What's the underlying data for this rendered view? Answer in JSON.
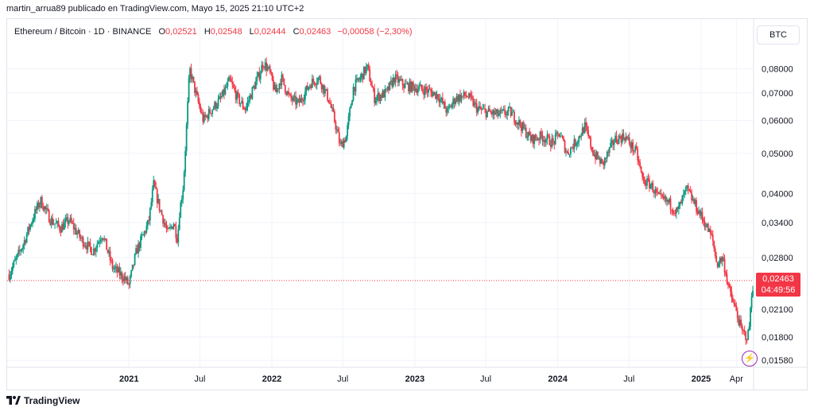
{
  "attribution": "martin_arrua89 publicado en TradingView.com, Mayo 15, 2025 21:10 UTC+2",
  "legend": {
    "symbol": "Ethereum / Bitcoin · 1D · BINANCE",
    "o_label": "O",
    "o_value": "0,02521",
    "h_label": "H",
    "h_value": "0,02548",
    "l_label": "L",
    "l_value": "0,02444",
    "c_label": "C",
    "c_value": "0,02463",
    "change": "−0,00058 (−2,30%)"
  },
  "unit": "BTC",
  "price_tag": {
    "price": "0,02463",
    "countdown": "04:49:56"
  },
  "footer_logo": "TradingView",
  "colors": {
    "up": "#089981",
    "down": "#f23645",
    "grid": "#f0f3fa",
    "text": "#131722",
    "flash": "#9c27b0"
  },
  "chart_data": {
    "type": "candlestick",
    "title": "Ethereum / Bitcoin · 1D · BINANCE",
    "y_scale": "log",
    "ylim": [
      0.0152,
      0.092
    ],
    "y_ticks": [
      {
        "value": 0.08,
        "label": "0,08000"
      },
      {
        "value": 0.07,
        "label": "0,07000"
      },
      {
        "value": 0.06,
        "label": "0,06000"
      },
      {
        "value": 0.05,
        "label": "0,05000"
      },
      {
        "value": 0.04,
        "label": "0,04000"
      },
      {
        "value": 0.034,
        "label": "0,03400"
      },
      {
        "value": 0.028,
        "label": "0,02800"
      },
      {
        "value": 0.021,
        "label": "0,02100"
      },
      {
        "value": 0.018,
        "label": "0,01800"
      },
      {
        "value": 0.0158,
        "label": "0,01580"
      }
    ],
    "x_ticks": [
      {
        "date": "2021-01-01",
        "label": "2021",
        "bold": true
      },
      {
        "date": "2021-07-01",
        "label": "Jul",
        "bold": false
      },
      {
        "date": "2022-01-01",
        "label": "2022",
        "bold": true
      },
      {
        "date": "2022-07-01",
        "label": "Jul",
        "bold": false
      },
      {
        "date": "2023-01-01",
        "label": "2023",
        "bold": true
      },
      {
        "date": "2023-07-01",
        "label": "Jul",
        "bold": false
      },
      {
        "date": "2024-01-01",
        "label": "2024",
        "bold": true
      },
      {
        "date": "2024-07-01",
        "label": "Jul",
        "bold": false
      },
      {
        "date": "2025-01-01",
        "label": "2025",
        "bold": true
      },
      {
        "date": "2025-04-01",
        "label": "Apr",
        "bold": false
      }
    ],
    "xlim": [
      "2020-02-25",
      "2025-05-15"
    ],
    "last_close": 0.02463,
    "close_path": [
      [
        "2020-03-01",
        0.0255
      ],
      [
        "2020-04-05",
        0.03
      ],
      [
        "2020-05-01",
        0.035
      ],
      [
        "2020-05-20",
        0.0385
      ],
      [
        "2020-06-15",
        0.0345
      ],
      [
        "2020-07-10",
        0.033
      ],
      [
        "2020-08-01",
        0.0345
      ],
      [
        "2020-09-01",
        0.031
      ],
      [
        "2020-10-01",
        0.029
      ],
      [
        "2020-10-25",
        0.032
      ],
      [
        "2020-11-20",
        0.0265
      ],
      [
        "2020-12-20",
        0.025
      ],
      [
        "2021-01-01",
        0.024
      ],
      [
        "2021-01-20",
        0.029
      ],
      [
        "2021-02-20",
        0.034
      ],
      [
        "2021-03-05",
        0.042
      ],
      [
        "2021-03-20",
        0.037
      ],
      [
        "2021-04-10",
        0.032
      ],
      [
        "2021-04-25",
        0.034
      ],
      [
        "2021-05-05",
        0.031
      ],
      [
        "2021-05-10",
        0.036
      ],
      [
        "2021-05-20",
        0.042
      ],
      [
        "2021-05-28",
        0.058
      ],
      [
        "2021-06-05",
        0.08
      ],
      [
        "2021-06-20",
        0.07
      ],
      [
        "2021-07-10",
        0.06
      ],
      [
        "2021-08-01",
        0.064
      ],
      [
        "2021-08-25",
        0.068
      ],
      [
        "2021-09-15",
        0.075
      ],
      [
        "2021-10-05",
        0.068
      ],
      [
        "2021-10-25",
        0.064
      ],
      [
        "2021-11-15",
        0.072
      ],
      [
        "2021-12-01",
        0.078
      ],
      [
        "2021-12-10",
        0.083
      ],
      [
        "2021-12-25",
        0.079
      ],
      [
        "2022-01-10",
        0.07
      ],
      [
        "2022-01-25",
        0.076
      ],
      [
        "2022-02-15",
        0.068
      ],
      [
        "2022-03-10",
        0.066
      ],
      [
        "2022-04-10",
        0.074
      ],
      [
        "2022-05-01",
        0.076
      ],
      [
        "2022-05-25",
        0.068
      ],
      [
        "2022-06-10",
        0.06
      ],
      [
        "2022-06-25",
        0.052
      ],
      [
        "2022-07-10",
        0.055
      ],
      [
        "2022-07-28",
        0.072
      ],
      [
        "2022-08-15",
        0.076
      ],
      [
        "2022-09-01",
        0.081
      ],
      [
        "2022-09-20",
        0.068
      ],
      [
        "2022-10-20",
        0.07
      ],
      [
        "2022-11-10",
        0.076
      ],
      [
        "2022-12-05",
        0.073
      ],
      [
        "2023-01-05",
        0.072
      ],
      [
        "2023-02-01",
        0.071
      ],
      [
        "2023-03-01",
        0.069
      ],
      [
        "2023-03-25",
        0.063
      ],
      [
        "2023-04-15",
        0.068
      ],
      [
        "2023-05-15",
        0.069
      ],
      [
        "2023-06-10",
        0.064
      ],
      [
        "2023-07-01",
        0.063
      ],
      [
        "2023-08-01",
        0.062
      ],
      [
        "2023-09-01",
        0.063
      ],
      [
        "2023-10-01",
        0.058
      ],
      [
        "2023-10-25",
        0.054
      ],
      [
        "2023-11-20",
        0.055
      ],
      [
        "2023-12-20",
        0.053
      ],
      [
        "2024-01-05",
        0.056
      ],
      [
        "2024-01-25",
        0.05
      ],
      [
        "2024-02-20",
        0.054
      ],
      [
        "2024-03-10",
        0.058
      ],
      [
        "2024-04-01",
        0.05
      ],
      [
        "2024-04-25",
        0.047
      ],
      [
        "2024-05-25",
        0.054
      ],
      [
        "2024-06-20",
        0.055
      ],
      [
        "2024-07-20",
        0.05
      ],
      [
        "2024-08-05",
        0.043
      ],
      [
        "2024-08-25",
        0.042
      ],
      [
        "2024-09-15",
        0.039
      ],
      [
        "2024-10-10",
        0.038
      ],
      [
        "2024-11-01",
        0.036
      ],
      [
        "2024-11-25",
        0.041
      ],
      [
        "2024-12-20",
        0.037
      ],
      [
        "2025-01-10",
        0.034
      ],
      [
        "2025-01-30",
        0.031
      ],
      [
        "2025-02-10",
        0.027
      ],
      [
        "2025-02-25",
        0.028
      ],
      [
        "2025-03-15",
        0.023
      ],
      [
        "2025-03-30",
        0.021
      ],
      [
        "2025-04-15",
        0.0185
      ],
      [
        "2025-04-30",
        0.018
      ],
      [
        "2025-05-05",
        0.0195
      ],
      [
        "2025-05-10",
        0.023
      ],
      [
        "2025-05-15",
        0.02463
      ]
    ]
  }
}
